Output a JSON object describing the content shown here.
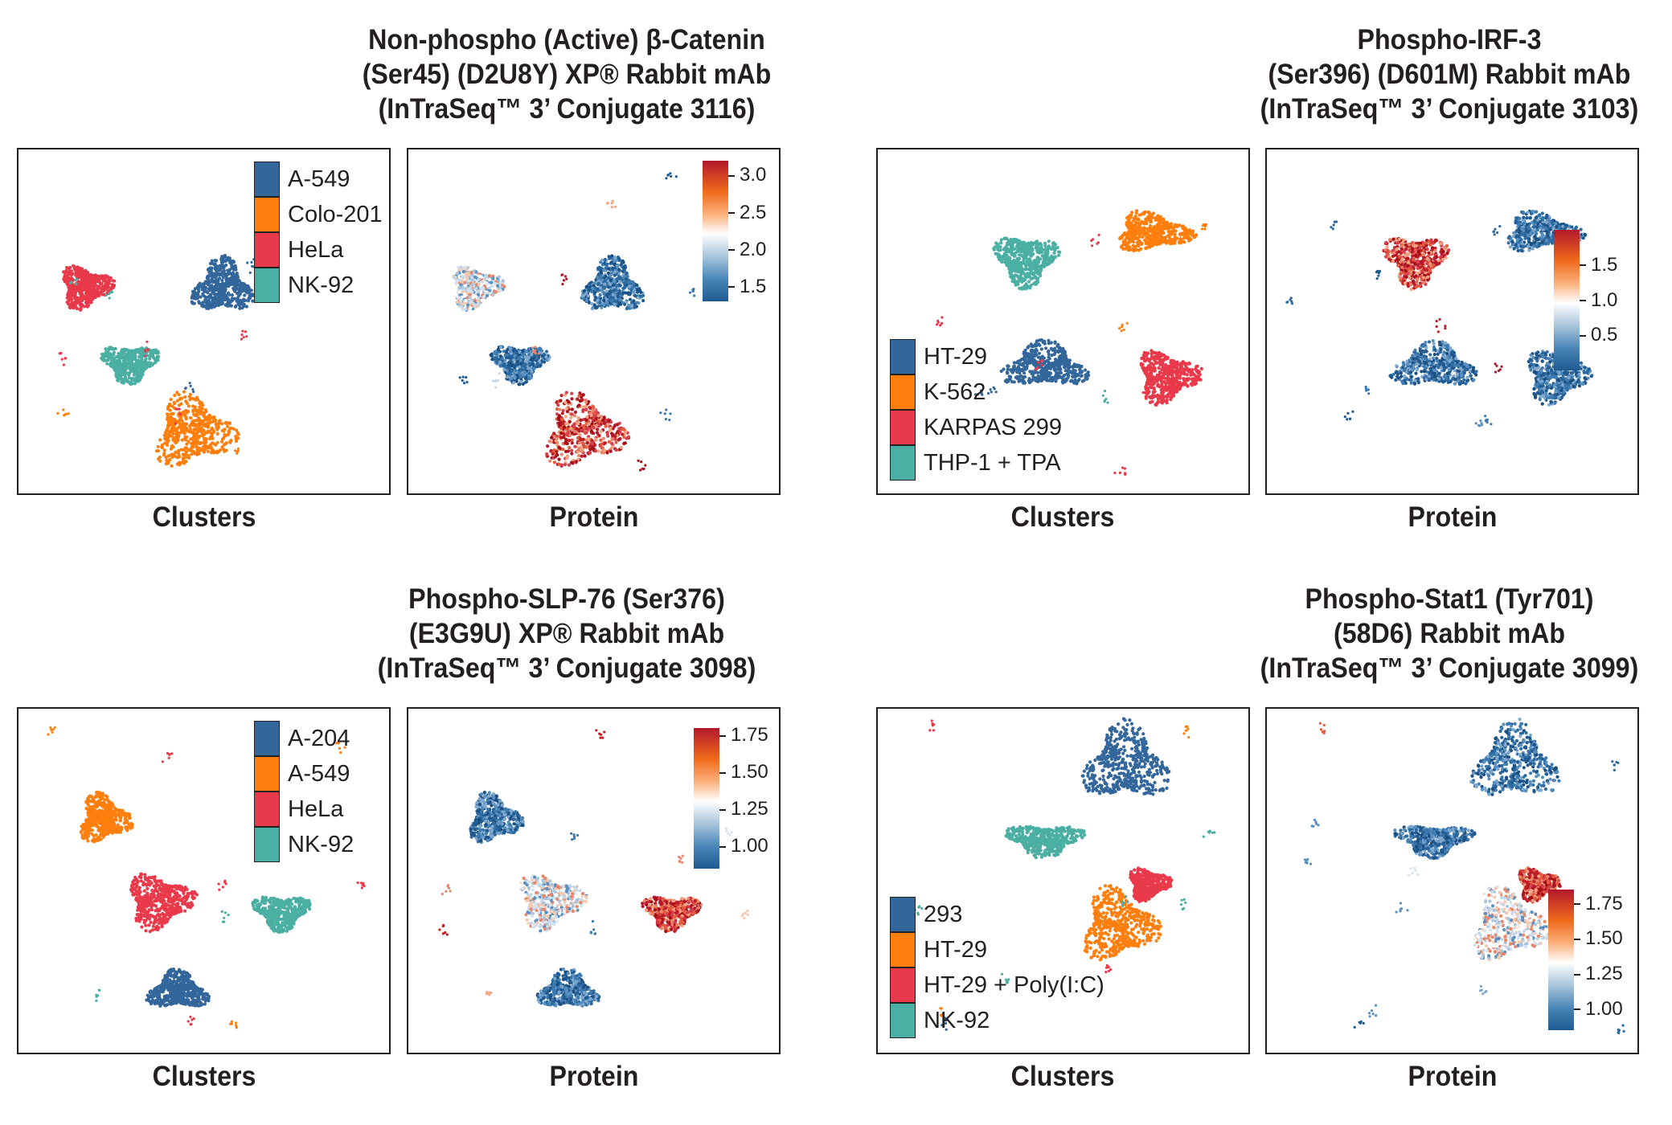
{
  "colors": {
    "blue": "#33679b",
    "orange": "#ff7f0e",
    "red": "#e83a4a",
    "teal": "#4bafa3",
    "frame": "#231f20"
  },
  "chart_data": [
    {
      "type": "scatter",
      "subtype": "umap-clusters",
      "title": "Non-phospho (Active) β-Catenin (Ser45) (D2U8Y) XP® Rabbit mAb (InTraSeq™ 3’ Conjugate 3116)",
      "title_lines": [
        "Non-phospho (Active) β-Catenin",
        "(Ser45) (D2U8Y) XP® Rabbit mAb",
        "(InTraSeq™ 3’ Conjugate 3116)"
      ],
      "cluster_label": "Clusters",
      "protein_label": "Protein",
      "legend": [
        "A-549",
        "Colo-201",
        "HeLa",
        "NK-92"
      ],
      "legend_colors": [
        "#33679b",
        "#ff7f0e",
        "#e83a4a",
        "#4bafa3"
      ],
      "colorbar_ticks": [
        "3.0",
        "2.5",
        "2.0",
        "1.5"
      ],
      "colorbar_range": [
        1.3,
        3.2
      ],
      "clusters": [
        {
          "group": "A-549",
          "cx": 0.55,
          "cy": 0.4,
          "rx": 0.085,
          "ry": 0.085,
          "protein": "low"
        },
        {
          "group": "Colo-201",
          "cx": 0.47,
          "cy": 0.82,
          "rx": 0.115,
          "ry": 0.11,
          "protein": "high"
        },
        {
          "group": "HeLa",
          "cx": 0.18,
          "cy": 0.4,
          "rx": 0.075,
          "ry": 0.065,
          "protein": "mixed"
        },
        {
          "group": "NK-92",
          "cx": 0.3,
          "cy": 0.62,
          "rx": 0.08,
          "ry": 0.06,
          "protein": "low"
        }
      ]
    },
    {
      "type": "scatter",
      "subtype": "umap-clusters",
      "title": "Phospho-IRF-3 (Ser396) (D601M) Rabbit mAb (InTraSeq™ 3’ Conjugate 3103)",
      "title_lines": [
        "Phospho-IRF-3",
        "(Ser396) (D601M) Rabbit mAb",
        "(InTraSeq™ 3’ Conjugate 3103)"
      ],
      "cluster_label": "Clusters",
      "protein_label": "Protein",
      "legend": [
        "HT-29",
        "K-562",
        "KARPAS 299",
        "THP-1 + TPA"
      ],
      "legend_colors": [
        "#33679b",
        "#ff7f0e",
        "#e83a4a",
        "#4bafa3"
      ],
      "colorbar_ticks": [
        "1.5",
        "1.0",
        "0.5"
      ],
      "colorbar_range": [
        0,
        2.0
      ],
      "clusters": [
        {
          "group": "HT-29",
          "cx": 0.45,
          "cy": 0.63,
          "rx": 0.12,
          "ry": 0.07,
          "protein": "low"
        },
        {
          "group": "K-562",
          "cx": 0.74,
          "cy": 0.24,
          "rx": 0.11,
          "ry": 0.06,
          "protein": "low"
        },
        {
          "group": "KARPAS 299",
          "cx": 0.78,
          "cy": 0.66,
          "rx": 0.09,
          "ry": 0.08,
          "protein": "low"
        },
        {
          "group": "THP-1 + TPA",
          "cx": 0.4,
          "cy": 0.32,
          "rx": 0.09,
          "ry": 0.08,
          "protein": "high"
        }
      ]
    },
    {
      "type": "scatter",
      "subtype": "umap-clusters",
      "title": "Phospho-SLP-76 (Ser376) (E3G9U) XP® Rabbit mAb (InTraSeq™ 3’ Conjugate 3098)",
      "title_lines": [
        "Phospho-SLP-76 (Ser376)",
        "(E3G9U) XP® Rabbit mAb",
        "(InTraSeq™ 3’ Conjugate 3098)"
      ],
      "cluster_label": "Clusters",
      "protein_label": "Protein",
      "legend": [
        "A-204",
        "A-549",
        "HeLa",
        "NK-92"
      ],
      "legend_colors": [
        "#33679b",
        "#ff7f0e",
        "#e83a4a",
        "#4bafa3"
      ],
      "colorbar_ticks": [
        "1.75",
        "1.50",
        "1.25",
        "1.00"
      ],
      "colorbar_range": [
        0.85,
        1.8
      ],
      "clusters": [
        {
          "group": "A-204",
          "cx": 0.43,
          "cy": 0.82,
          "rx": 0.085,
          "ry": 0.06,
          "protein": "low"
        },
        {
          "group": "A-549",
          "cx": 0.23,
          "cy": 0.32,
          "rx": 0.075,
          "ry": 0.075,
          "protein": "low"
        },
        {
          "group": "HeLa",
          "cx": 0.38,
          "cy": 0.56,
          "rx": 0.095,
          "ry": 0.085,
          "protein": "mixed"
        },
        {
          "group": "NK-92",
          "cx": 0.71,
          "cy": 0.59,
          "rx": 0.08,
          "ry": 0.055,
          "protein": "high"
        }
      ]
    },
    {
      "type": "scatter",
      "subtype": "umap-clusters",
      "title": "Phospho-Stat1 (Tyr701) (58D6) Rabbit mAb (InTraSeq™ 3’ Conjugate 3099)",
      "title_lines": [
        "Phospho-Stat1 (Tyr701)",
        "(58D6) Rabbit mAb",
        "(InTraSeq™ 3’ Conjugate 3099)"
      ],
      "cluster_label": "Clusters",
      "protein_label": "Protein",
      "legend": [
        "293",
        "HT-29",
        "HT-29 + Poly(I:C)",
        "NK-92"
      ],
      "legend_colors": [
        "#33679b",
        "#ff7f0e",
        "#e83a4a",
        "#4bafa3"
      ],
      "colorbar_ticks": [
        "1.75",
        "1.50",
        "1.25",
        "1.00"
      ],
      "colorbar_range": [
        0.85,
        1.85
      ],
      "clusters": [
        {
          "group": "293",
          "cx": 0.67,
          "cy": 0.16,
          "rx": 0.12,
          "ry": 0.12,
          "protein": "low"
        },
        {
          "group": "HT-29",
          "cx": 0.65,
          "cy": 0.63,
          "rx": 0.11,
          "ry": 0.11,
          "protein": "mixed"
        },
        {
          "group": "HT-29 + Poly(I:C)",
          "cx": 0.73,
          "cy": 0.51,
          "rx": 0.06,
          "ry": 0.05,
          "protein": "high"
        },
        {
          "group": "NK-92",
          "cx": 0.45,
          "cy": 0.38,
          "rx": 0.11,
          "ry": 0.05,
          "protein": "low"
        }
      ]
    }
  ]
}
